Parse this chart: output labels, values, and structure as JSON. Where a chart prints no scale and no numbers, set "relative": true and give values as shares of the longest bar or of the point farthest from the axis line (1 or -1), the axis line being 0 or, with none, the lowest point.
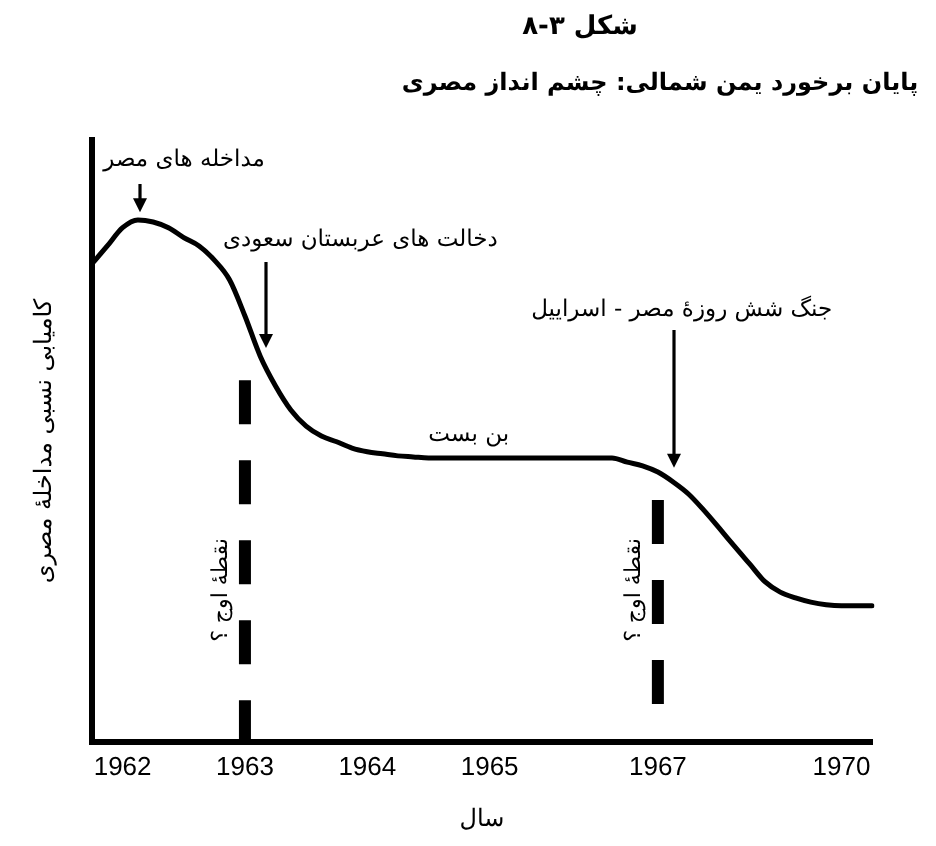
{
  "chart_data": {
    "type": "line",
    "title": "شکل ۳-۸",
    "subtitle": "پایان برخورد یمن شمالی: چشم انداز مصری",
    "xlabel": "سال",
    "ylabel": "کامیابی نسبی مداخلهٔ مصری",
    "categories": [
      null,
      null,
      "1962",
      null,
      null,
      null,
      null,
      null,
      null,
      null,
      "1963",
      null,
      null,
      null,
      null,
      null,
      null,
      null,
      "1964",
      null,
      null,
      null,
      null,
      null,
      null,
      null,
      "1965",
      null,
      null,
      null,
      null,
      null,
      null,
      null,
      null,
      null,
      null,
      "1967",
      null,
      null,
      null,
      null,
      null,
      null,
      null,
      null,
      null,
      null,
      null,
      "1970",
      null,
      null
    ],
    "values": [
      0.916,
      0.95,
      0.985,
      1.0,
      0.996,
      0.985,
      0.966,
      0.95,
      0.923,
      0.885,
      0.816,
      0.739,
      0.682,
      0.636,
      0.605,
      0.586,
      0.575,
      0.563,
      0.556,
      0.552,
      0.548,
      0.546,
      0.544,
      0.544,
      0.544,
      0.544,
      0.544,
      0.544,
      0.544,
      0.544,
      0.544,
      0.544,
      0.544,
      0.544,
      0.544,
      0.536,
      0.529,
      0.517,
      0.498,
      0.475,
      0.444,
      0.41,
      0.375,
      0.341,
      0.307,
      0.287,
      0.276,
      0.268,
      0.263,
      0.261,
      0.261,
      0.261
    ],
    "color": "#000000",
    "relative": true,
    "ref_lines": [
      {
        "axis": "x",
        "value": "1963",
        "label": "نقطهٔ اوج ؟",
        "color": "#000000",
        "line_style": "dashed"
      },
      {
        "axis": "x",
        "value": "1967",
        "label": "نقطهٔ اوج ؟",
        "color": "#000000",
        "line_style": "dashed"
      }
    ],
    "annotations": [
      "مداخله های مصر",
      "دخالت های عربستان سعودی",
      "جنگ شش روزهٔ مصر - اسراییل",
      "بن بست"
    ]
  }
}
